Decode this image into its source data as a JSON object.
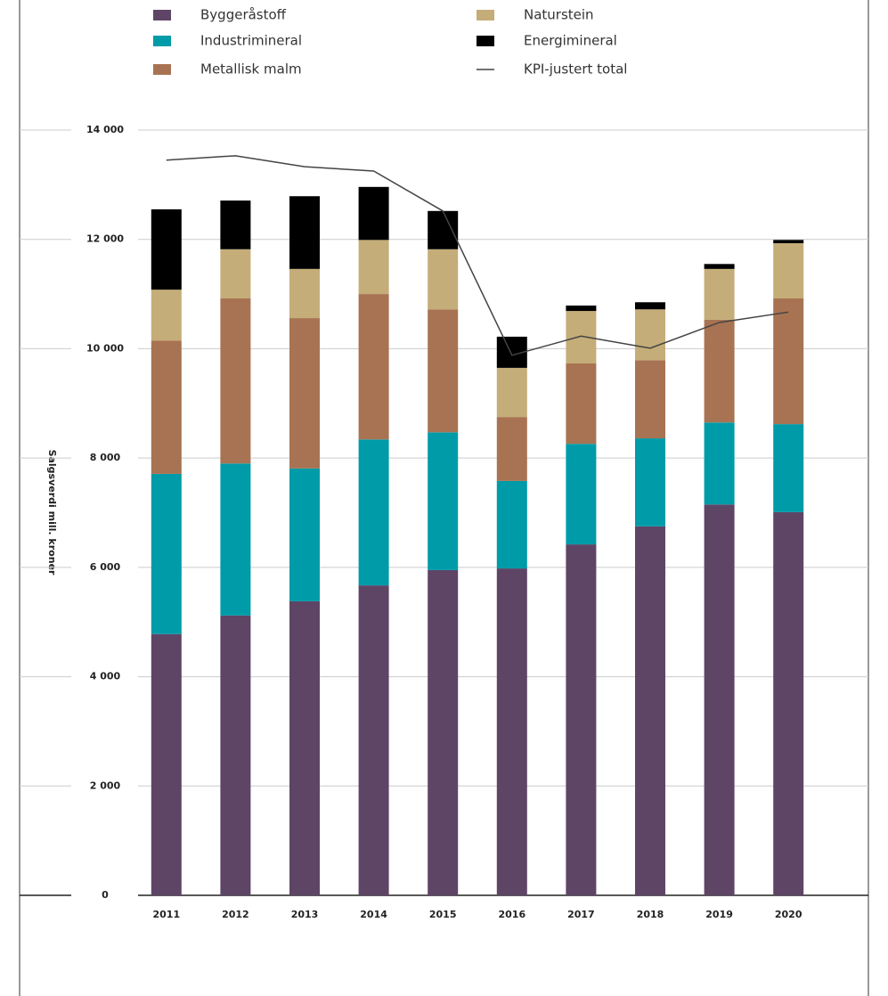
{
  "chart_data": {
    "type": "bar",
    "stacked": true,
    "ylabel": "Salgsverdi mill. kroner",
    "categories": [
      "2011",
      "2012",
      "2013",
      "2014",
      "2015",
      "2016",
      "2017",
      "2018",
      "2019",
      "2020"
    ],
    "series": [
      {
        "name": "Byggeråstoff",
        "color": "#5e4566",
        "values": [
          4780,
          5120,
          5380,
          5670,
          5950,
          5980,
          6420,
          6750,
          7150,
          7010
        ]
      },
      {
        "name": "Industrimineral",
        "color": "#009ba8",
        "values": [
          2930,
          2780,
          2430,
          2670,
          2520,
          1600,
          1840,
          1610,
          1500,
          1610
        ]
      },
      {
        "name": "Metallisk malm",
        "color": "#a87352",
        "values": [
          2440,
          3020,
          2750,
          2660,
          2250,
          1170,
          1470,
          1430,
          1880,
          2300
        ]
      },
      {
        "name": "Naturstein",
        "color": "#c4ad78",
        "values": [
          930,
          900,
          900,
          990,
          1100,
          900,
          960,
          930,
          930,
          1010
        ]
      },
      {
        "name": "Energimineral",
        "color": "#000000",
        "values": [
          1470,
          890,
          1330,
          970,
          700,
          570,
          100,
          130,
          90,
          60
        ]
      },
      {
        "name": "KPI-justert total",
        "color": "#444444",
        "type": "line",
        "values": [
          13450,
          13530,
          13330,
          13250,
          12520,
          9880,
          10230,
          10010,
          10480,
          10670
        ]
      }
    ],
    "ylim": [
      0,
      14000
    ],
    "yticks": [
      0,
      {
        "value": 2000,
        "label": "2 000"
      },
      {
        "value": 4000,
        "label": "4 000"
      },
      {
        "value": 6000,
        "label": "6 000"
      },
      {
        "value": 8000,
        "label": "8 000"
      },
      {
        "value": 10000,
        "label": "10 000"
      },
      {
        "value": 12000,
        "label": "12 000"
      },
      {
        "value": 14000,
        "label": "14 000"
      }
    ],
    "grid": true
  }
}
